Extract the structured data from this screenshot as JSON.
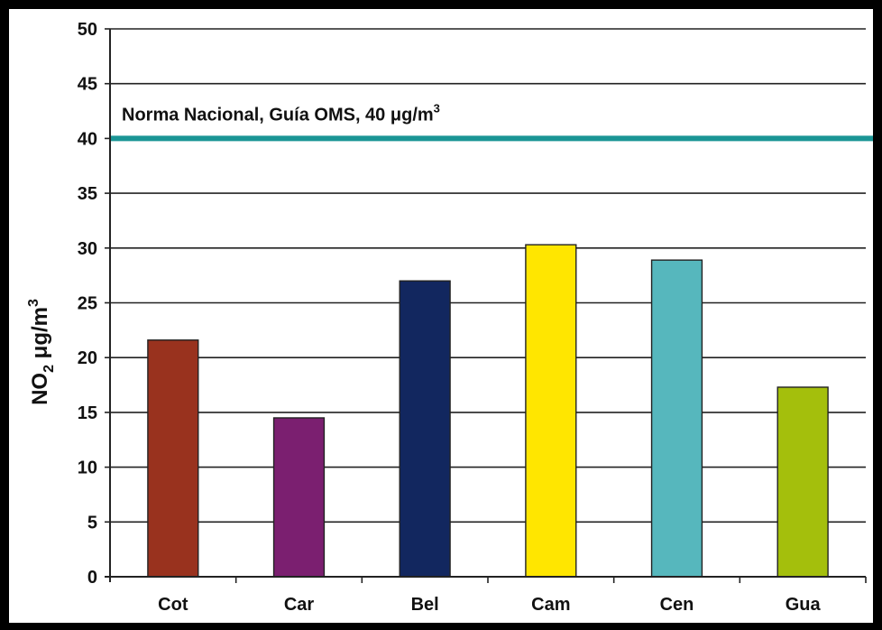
{
  "chart_data": {
    "type": "bar",
    "categories": [
      "Cot",
      "Car",
      "Bel",
      "Cam",
      "Cen",
      "Gua"
    ],
    "values": [
      21.6,
      14.5,
      27.0,
      30.3,
      28.9,
      17.3
    ],
    "colors": [
      "#99321e",
      "#7b1f70",
      "#12275f",
      "#ffe600",
      "#56b7bd",
      "#a4bf0c"
    ],
    "ylabel_main": "NO",
    "ylabel_sub": "2",
    "ylabel_unit": " μg/m",
    "ylabel_sup": "3",
    "ylim": [
      0,
      50
    ],
    "yticks": [
      0,
      5,
      10,
      15,
      20,
      25,
      30,
      35,
      40,
      45,
      50
    ],
    "grid": true,
    "reference_line": {
      "value": 40,
      "color": "#1a9595",
      "label": "Norma Nacional, Guía OMS, 40 μg/m",
      "label_sup": "3"
    }
  }
}
